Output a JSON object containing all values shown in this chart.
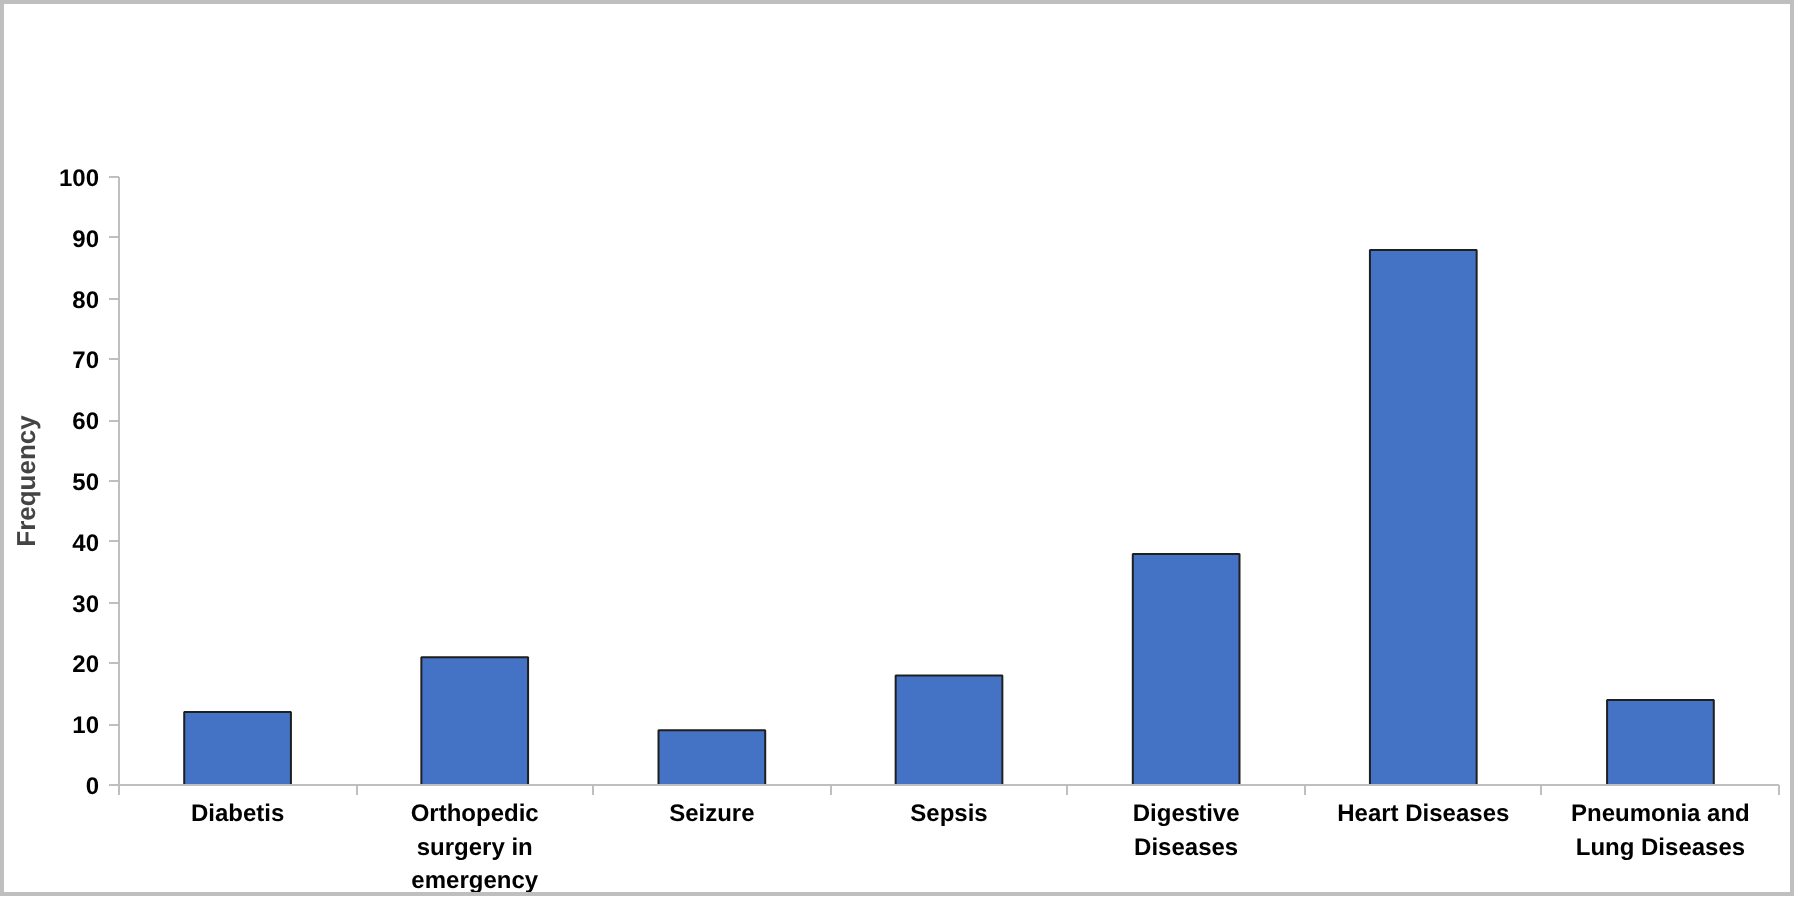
{
  "chart_data": {
    "type": "bar",
    "ylabel": "Frequency",
    "categories": [
      "Diabetis",
      "Orthopedic surgery in emergency",
      "Seizure",
      "Sepsis",
      "Digestive Diseases",
      "Heart Diseases",
      "Pneumonia and Lung Diseases"
    ],
    "values": [
      12,
      21,
      9,
      18,
      38,
      88,
      14
    ],
    "color": "#4472c4",
    "ylim": [
      0,
      100
    ],
    "yticks": [
      0,
      10,
      20,
      30,
      40,
      50,
      60,
      70,
      80,
      90,
      100
    ],
    "grid": false
  }
}
